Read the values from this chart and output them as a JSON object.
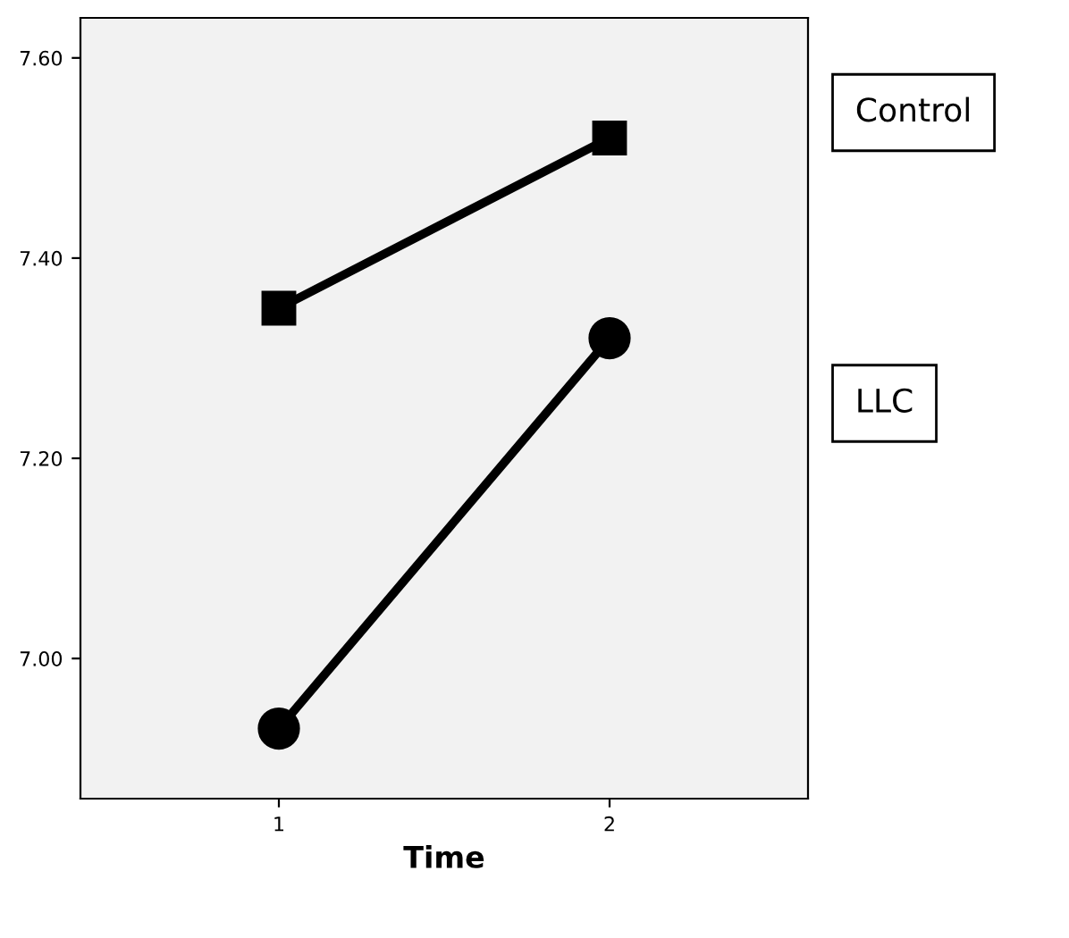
{
  "chart_data": {
    "type": "line",
    "xlabel": "Time",
    "x": [
      1,
      2
    ],
    "xlim": [
      0.4,
      2.6
    ],
    "xticks": [
      1,
      2
    ],
    "ylim": [
      6.86,
      7.64
    ],
    "yticks": [
      {
        "value": 7.0,
        "label": "7.00"
      },
      {
        "value": 7.2,
        "label": "7.20"
      },
      {
        "value": 7.4,
        "label": "7.40"
      },
      {
        "value": 7.6,
        "label": "7.60"
      }
    ],
    "series": [
      {
        "name": "Control",
        "color": "#000000",
        "marker": "square",
        "values": [
          7.35,
          7.52
        ]
      },
      {
        "name": "LLC",
        "color": "#000000",
        "marker": "circle",
        "values": [
          6.93,
          7.32
        ]
      }
    ],
    "legend": "right",
    "grid": false,
    "line_style": "solid"
  }
}
